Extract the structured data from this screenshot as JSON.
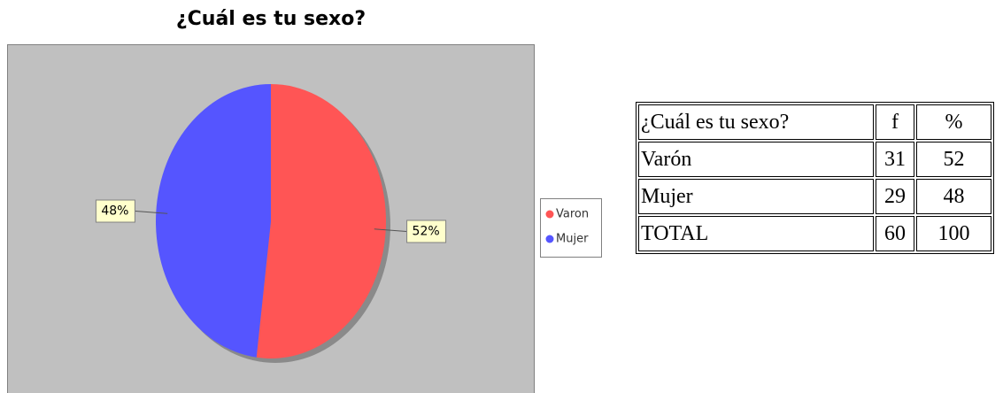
{
  "chart_data": {
    "type": "pie",
    "title": "¿Cuál es tu sexo?",
    "categories": [
      "Varon",
      "Mujer"
    ],
    "values": [
      52,
      48
    ],
    "value_labels": [
      "52%",
      "48%"
    ],
    "colors": [
      "#ff5555",
      "#5555ff"
    ],
    "legend": "right"
  },
  "table": {
    "header": [
      "¿Cuál es tu sexo?",
      "f",
      "%"
    ],
    "rows": [
      [
        "Varón",
        "31",
        "52"
      ],
      [
        "Mujer",
        "29",
        "48"
      ],
      [
        "TOTAL",
        "60",
        "100"
      ]
    ]
  }
}
